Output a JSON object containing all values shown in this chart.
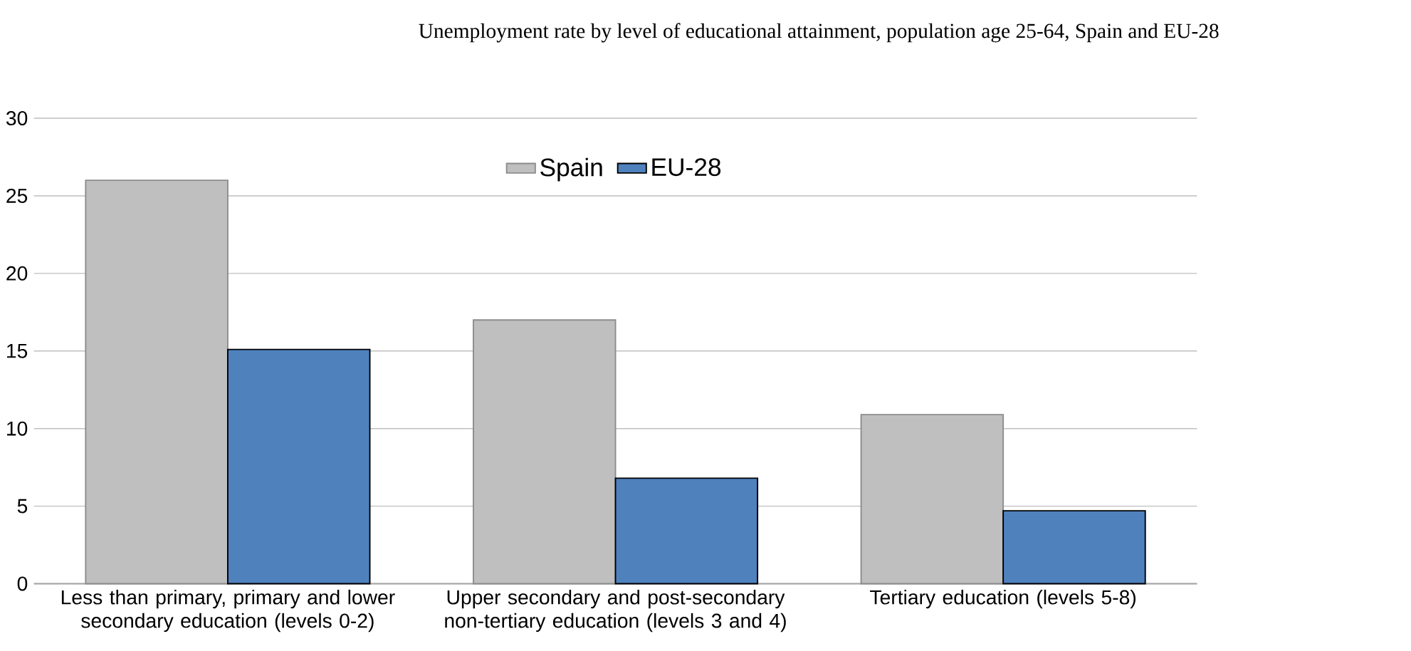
{
  "chart_data": {
    "type": "bar",
    "title": "Unemployment rate by level of educational attainment, population age 25-64, Spain and EU-28",
    "categories": [
      "Less than primary, primary and lower secondary education (levels 0-2)",
      "Upper secondary and post-secondary non-tertiary education (levels 3 and 4)",
      "Tertiary education (levels 5-8)"
    ],
    "series": [
      {
        "name": "Spain",
        "color": "#bfbfbf",
        "values": [
          26.0,
          17.0,
          10.9
        ]
      },
      {
        "name": "EU-28",
        "color": "#4f81bd",
        "values": [
          15.1,
          6.8,
          4.7
        ]
      }
    ],
    "ylim": [
      0,
      30
    ],
    "yticks": [
      0,
      5,
      10,
      15,
      20,
      25,
      30
    ],
    "grid": "y",
    "legend": "top"
  }
}
